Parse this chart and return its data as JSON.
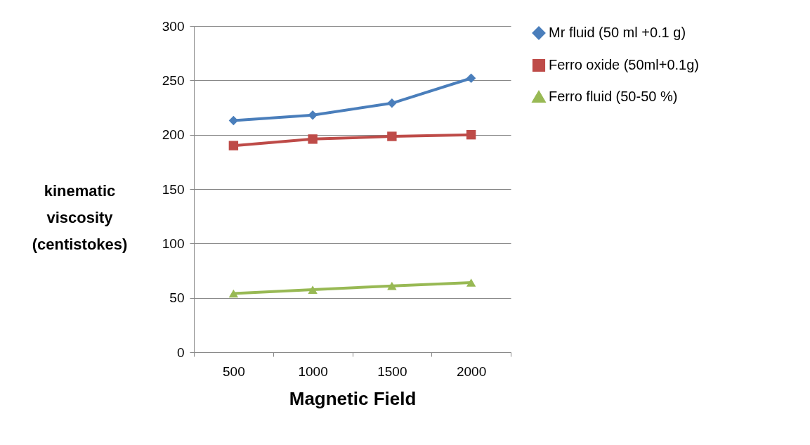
{
  "chart_data": {
    "type": "line",
    "xlabel": "Magnetic Field",
    "ylabel": "kinematic viscosity (centistokes)",
    "categories": [
      "500",
      "1000",
      "1500",
      "2000"
    ],
    "series": [
      {
        "name": "Mr fluid (50 ml +0.1 g)",
        "color": "#4a7ebb",
        "marker": "diamond",
        "values": [
          213,
          218,
          229,
          252
        ]
      },
      {
        "name": "Ferro oxide (50ml+0.1g)",
        "color": "#be4b48",
        "marker": "square",
        "values": [
          190,
          196,
          198.5,
          200
        ]
      },
      {
        "name": "Ferro fluid (50-50 %)",
        "color": "#98b954",
        "marker": "triangle",
        "values": [
          54,
          57.5,
          61,
          64
        ]
      }
    ],
    "ylim": [
      0,
      300
    ],
    "yticks": [
      0,
      50,
      100,
      150,
      200,
      250,
      300
    ],
    "grid": "y",
    "legend": "right"
  }
}
